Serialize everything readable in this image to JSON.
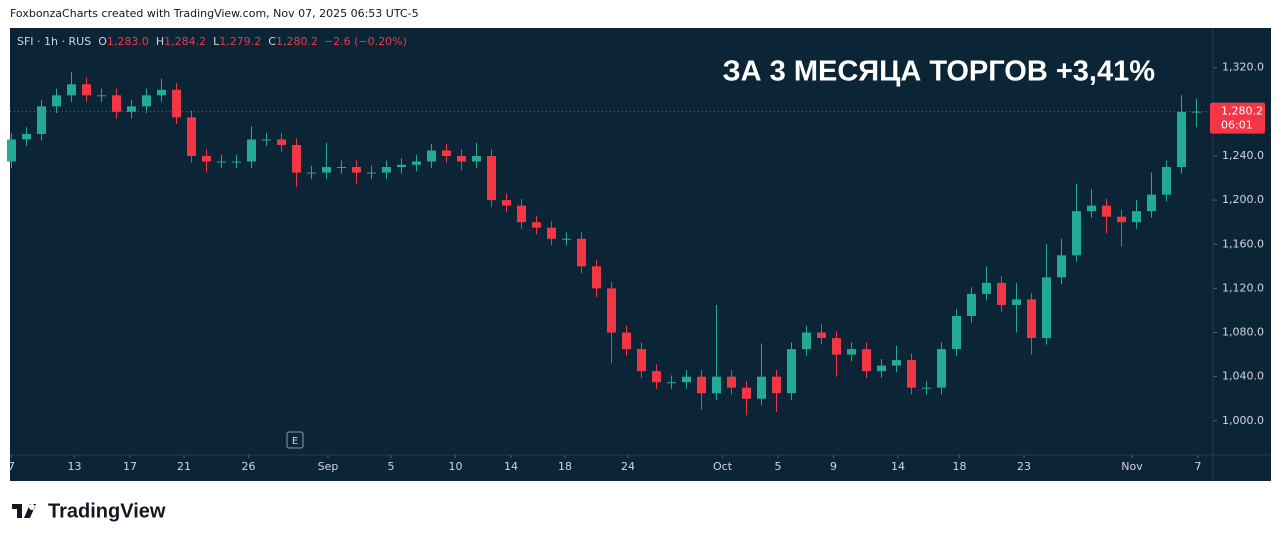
{
  "chart_data": {
    "type": "candlestick",
    "watermark": "FoxbonzaCharts created with TradingView.com, Nov 07, 2025 06:53 UTC-5",
    "legend": {
      "symbol": "SFI · 1h · RUS",
      "items": [
        {
          "key": "O",
          "value": "1,283.0"
        },
        {
          "key": "H",
          "value": "1,284.2"
        },
        {
          "key": "L",
          "value": "1,279.2"
        },
        {
          "key": "C",
          "value": "1,280.2"
        }
      ],
      "change": "−2.6 (−0.20%)"
    },
    "annotation": "ЗА 3 МЕСЯЦА ТОРГОВ +3,41%",
    "event_marker": "E",
    "brand": "TradingView",
    "up_color": "#22ab94",
    "down_color": "#f23645",
    "x": [
      0,
      1,
      2,
      3,
      4,
      5,
      6,
      7,
      8,
      9,
      10,
      11,
      12,
      13,
      14,
      15,
      16,
      17,
      18,
      19,
      20,
      21,
      22,
      23,
      24,
      25,
      26,
      27,
      28,
      29,
      30,
      31,
      32,
      33,
      34,
      35,
      36,
      37,
      38,
      39,
      40,
      41,
      42,
      43,
      44,
      45,
      46,
      47,
      48,
      49,
      50,
      51,
      52,
      53,
      54,
      55,
      56,
      57,
      58,
      59,
      60,
      61,
      62,
      63,
      64,
      65,
      66,
      67,
      68,
      69,
      70,
      71,
      72,
      73,
      74,
      75,
      76,
      77,
      78,
      79
    ],
    "open": [
      1235,
      1255,
      1260,
      1285,
      1295,
      1305,
      1295,
      1295,
      1280,
      1285,
      1295,
      1300,
      1275,
      1240,
      1235,
      1235,
      1235,
      1255,
      1255,
      1250,
      1225,
      1225,
      1230,
      1230,
      1225,
      1225,
      1230,
      1232,
      1235,
      1245,
      1240,
      1235,
      1240,
      1200,
      1195,
      1180,
      1175,
      1165,
      1165,
      1140,
      1120,
      1080,
      1065,
      1045,
      1035,
      1035,
      1040,
      1025,
      1040,
      1030,
      1020,
      1040,
      1025,
      1065,
      1080,
      1075,
      1060,
      1065,
      1045,
      1050,
      1055,
      1030,
      1030,
      1065,
      1095,
      1115,
      1125,
      1105,
      1110,
      1075,
      1130,
      1150,
      1190,
      1195,
      1185,
      1180,
      1190,
      1205,
      1230,
      1280
    ],
    "high": [
      1261,
      1266,
      1291,
      1301,
      1316,
      1311,
      1301,
      1301,
      1291,
      1301,
      1310,
      1306,
      1281,
      1246,
      1241,
      1241,
      1267,
      1261,
      1261,
      1256,
      1231,
      1252,
      1236,
      1236,
      1231,
      1236,
      1238,
      1241,
      1251,
      1251,
      1246,
      1252,
      1246,
      1206,
      1201,
      1186,
      1181,
      1171,
      1171,
      1146,
      1126,
      1086,
      1071,
      1051,
      1041,
      1046,
      1046,
      1105,
      1046,
      1036,
      1070,
      1046,
      1071,
      1086,
      1088,
      1081,
      1071,
      1071,
      1056,
      1068,
      1061,
      1036,
      1071,
      1101,
      1121,
      1140,
      1131,
      1125,
      1116,
      1160,
      1165,
      1215,
      1210,
      1201,
      1191,
      1200,
      1225,
      1236,
      1295,
      1292
    ],
    "low": [
      1229,
      1249,
      1254,
      1279,
      1289,
      1289,
      1289,
      1274,
      1274,
      1279,
      1289,
      1269,
      1234,
      1225,
      1229,
      1229,
      1229,
      1249,
      1244,
      1212,
      1219,
      1219,
      1224,
      1215,
      1219,
      1219,
      1224,
      1226,
      1229,
      1234,
      1227,
      1229,
      1194,
      1189,
      1174,
      1169,
      1159,
      1159,
      1134,
      1112,
      1052,
      1059,
      1039,
      1029,
      1029,
      1029,
      1010,
      1019,
      1024,
      1005,
      1014,
      1008,
      1019,
      1059,
      1069,
      1040,
      1054,
      1039,
      1039,
      1044,
      1024,
      1024,
      1024,
      1059,
      1089,
      1109,
      1099,
      1080,
      1060,
      1069,
      1124,
      1144,
      1184,
      1170,
      1158,
      1174,
      1184,
      1199,
      1224,
      1266
    ],
    "close": [
      1255,
      1260,
      1285,
      1295,
      1305,
      1295,
      1295,
      1280,
      1285,
      1295,
      1300,
      1275,
      1240,
      1235,
      1235,
      1235,
      1255,
      1255,
      1250,
      1225,
      1225,
      1230,
      1230,
      1225,
      1225,
      1230,
      1232,
      1235,
      1245,
      1240,
      1235,
      1240,
      1200,
      1195,
      1180,
      1175,
      1165,
      1165,
      1140,
      1120,
      1080,
      1065,
      1045,
      1035,
      1035,
      1040,
      1025,
      1040,
      1030,
      1020,
      1040,
      1025,
      1065,
      1080,
      1075,
      1060,
      1065,
      1045,
      1050,
      1055,
      1030,
      1030,
      1065,
      1095,
      1115,
      1125,
      1105,
      1110,
      1075,
      1130,
      1150,
      1190,
      1195,
      1185,
      1180,
      1190,
      1205,
      1230,
      1280,
      1280.2
    ],
    "xlim": [
      -0.1,
      80.1
    ],
    "xticks": [
      {
        "value": 0,
        "label": "7"
      },
      {
        "value": 4.2,
        "label": "13"
      },
      {
        "value": 7.9,
        "label": "17"
      },
      {
        "value": 11.5,
        "label": "21"
      },
      {
        "value": 15.8,
        "label": "26"
      },
      {
        "value": 21.1,
        "label": "Sep"
      },
      {
        "value": 25.3,
        "label": "5"
      },
      {
        "value": 29.6,
        "label": "10"
      },
      {
        "value": 33.3,
        "label": "14"
      },
      {
        "value": 36.9,
        "label": "18"
      },
      {
        "value": 41.1,
        "label": "24"
      },
      {
        "value": 47.4,
        "label": "Oct"
      },
      {
        "value": 51.1,
        "label": "5"
      },
      {
        "value": 54.8,
        "label": "9"
      },
      {
        "value": 59.1,
        "label": "14"
      },
      {
        "value": 63.2,
        "label": "18"
      },
      {
        "value": 67.5,
        "label": "23"
      },
      {
        "value": 74.7,
        "label": "Nov"
      },
      {
        "value": 79.1,
        "label": "7"
      }
    ],
    "ylim": [
      969,
      1356
    ],
    "yticks": [
      {
        "value": 1000,
        "label": "1,000.0"
      },
      {
        "value": 1040,
        "label": "1,040.0"
      },
      {
        "value": 1080,
        "label": "1,080.0"
      },
      {
        "value": 1120,
        "label": "1,120.0"
      },
      {
        "value": 1160,
        "label": "1,160.0"
      },
      {
        "value": 1200,
        "label": "1,200.0"
      },
      {
        "value": 1240,
        "label": "1,240.0"
      },
      {
        "value": 1280,
        "label": "1,280.0"
      },
      {
        "value": 1320,
        "label": "1,320.0"
      }
    ],
    "last_price": {
      "value": 1280.2,
      "label": "1,280.2",
      "countdown": "06:01"
    }
  }
}
